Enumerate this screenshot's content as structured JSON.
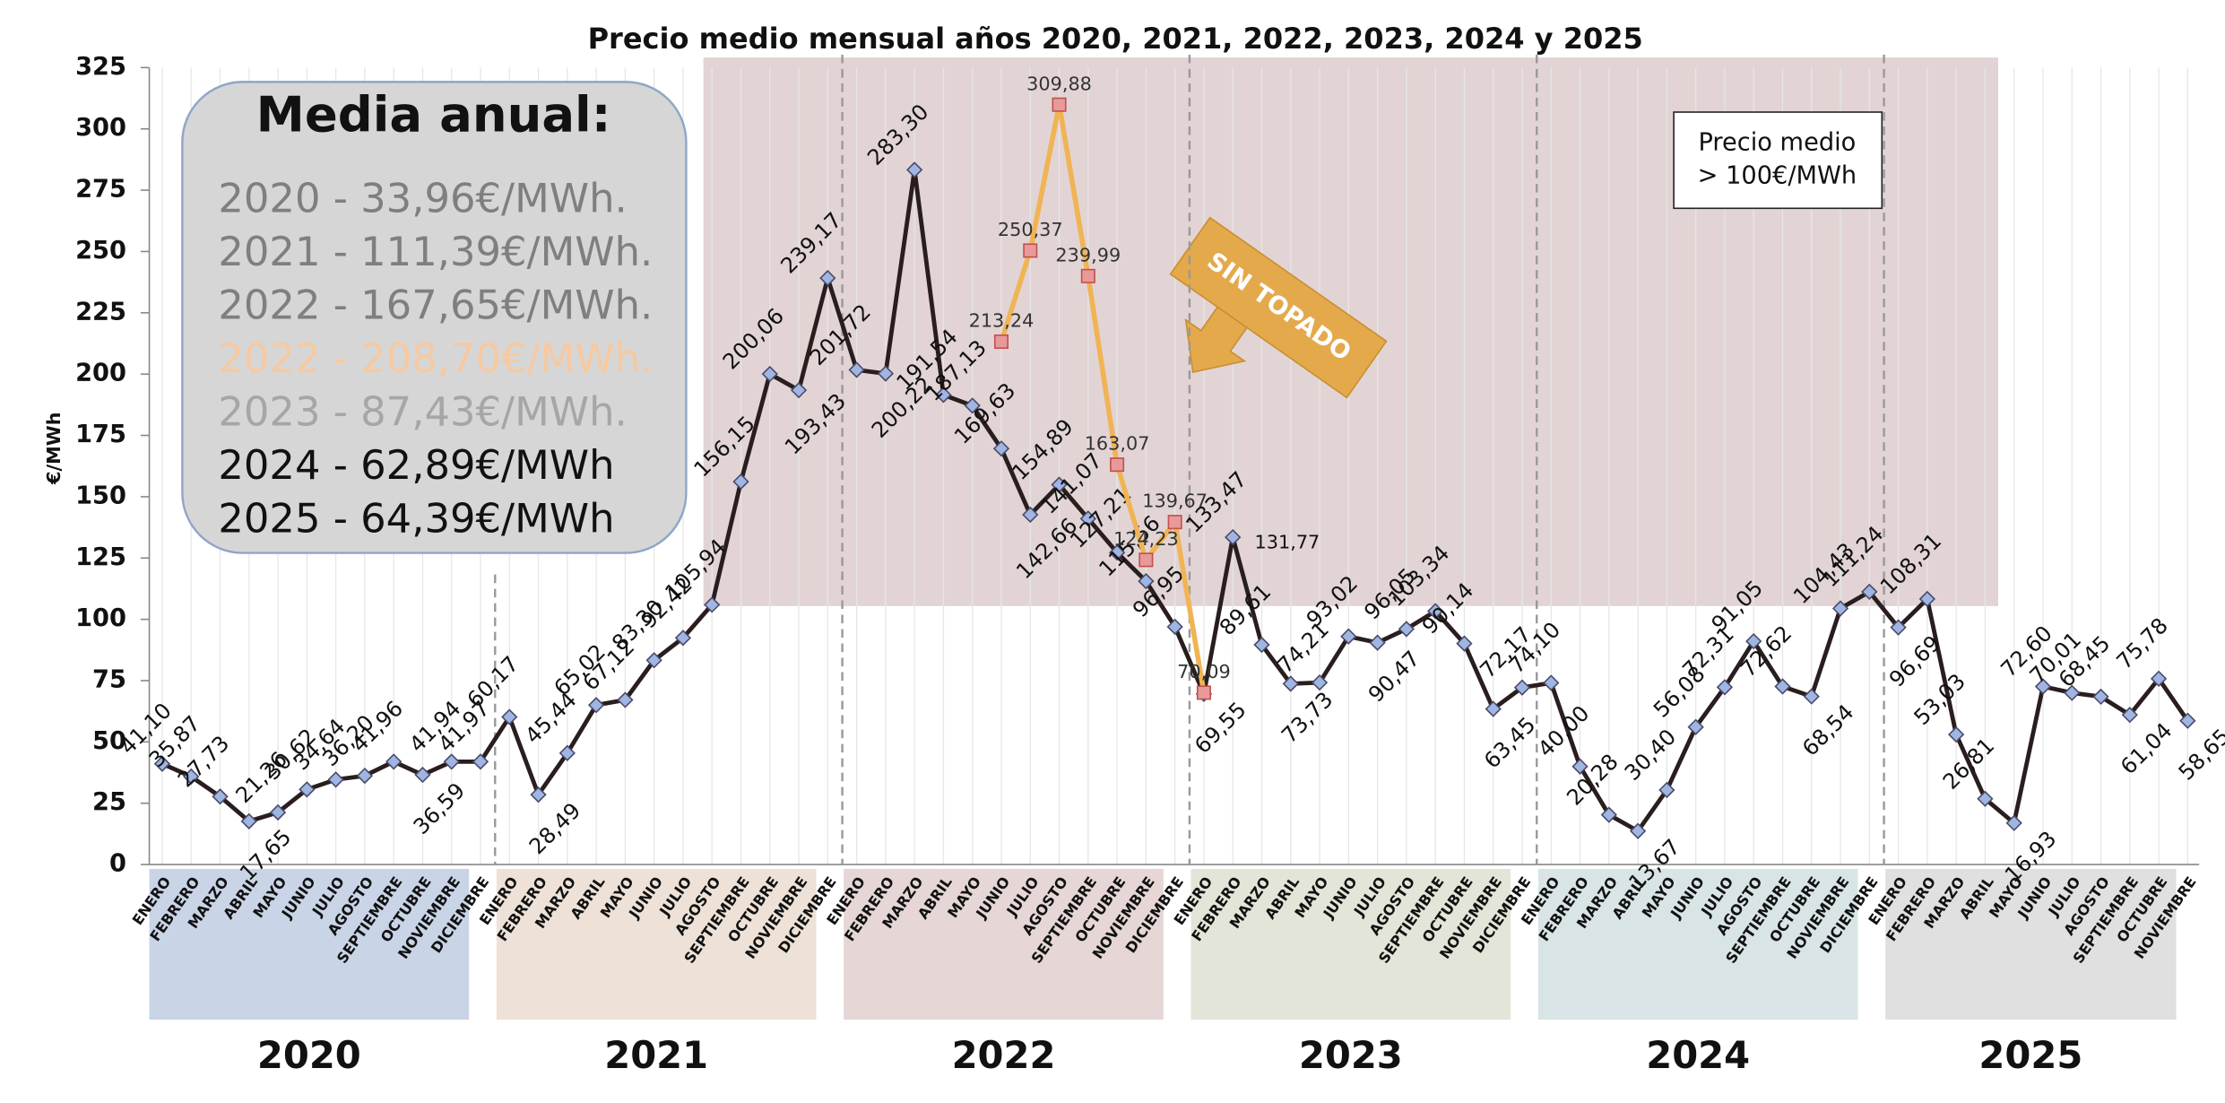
{
  "chart_data": {
    "type": "line",
    "title": "Precio medio mensual años 2020, 2021, 2022, 2023, 2024 y 2025",
    "y_label": "€/MWh",
    "ylim": [
      0,
      325
    ],
    "yticks": [
      0,
      25,
      50,
      75,
      100,
      125,
      150,
      175,
      200,
      225,
      250,
      275,
      300,
      325
    ],
    "grid": true,
    "categories": [
      "ENERO",
      "FEBRERO",
      "MARZO",
      "ABRIL",
      "MAYO",
      "JUNIO",
      "JULIO",
      "AGOSTO",
      "SEPTIEMBRE",
      "OCTUBRE",
      "NOVIEMBRE",
      "DICIEMBRE",
      "ENERO",
      "FEBRERO",
      "MARZO",
      "ABRIL",
      "MAYO",
      "JUNIO",
      "JULIO",
      "AGOSTO",
      "SEPTIEMBRE",
      "OCTUBRE",
      "NOVIEMBRE",
      "DICIEMBRE",
      "ENERO",
      "FEBRERO",
      "MARZO",
      "ABRIL",
      "MAYO",
      "JUNIO",
      "JULIO",
      "AGOSTO",
      "SEPTIEMBRE",
      "OCTUBRE",
      "NOVIEMBRE",
      "DICIEMBRE",
      "ENERO",
      "FEBRERO",
      "MARZO",
      "ABRIL",
      "MAYO",
      "JUNIO",
      "JULIO",
      "AGOSTO",
      "SEPTIEMBRE",
      "OCTUBRE",
      "NOVIEMBRE",
      "DICIEMBRE",
      "ENERO",
      "FEBRERO",
      "MARZO",
      "ABRIL",
      "MAYO",
      "JUNIO",
      "JULIO",
      "AGOSTO",
      "SEPTIEMBRE",
      "OCTUBRE",
      "NOVIEMBRE",
      "DICIEMBRE",
      "ENERO",
      "FEBRERO",
      "MARZO",
      "ABRIL",
      "MAYO",
      "JUNIO",
      "JULIO",
      "AGOSTO",
      "SEPTIEMBRE",
      "OCTUBRE",
      "NOVIEMBRE"
    ],
    "years": [
      {
        "label": "2020",
        "color": "#c9d4e7"
      },
      {
        "label": "2021",
        "color": "#eee2d8"
      },
      {
        "label": "2022",
        "color": "#e6d6d6"
      },
      {
        "label": "2023",
        "color": "#e3e5d8"
      },
      {
        "label": "2024",
        "color": "#d8e4e6"
      },
      {
        "label": "2025",
        "color": "#e0e0e0"
      }
    ],
    "series": [
      {
        "color": "#2a1d1d",
        "marker_color": "#9fb5e2",
        "values": [
          41.1,
          35.87,
          27.73,
          17.65,
          21.26,
          30.62,
          34.64,
          36.2,
          41.96,
          36.59,
          41.94,
          41.97,
          60.17,
          28.49,
          45.44,
          65.02,
          67.12,
          83.3,
          92.42,
          105.94,
          156.15,
          200.06,
          193.43,
          239.17,
          201.72,
          200.22,
          283.3,
          191.54,
          187.13,
          169.63,
          142.66,
          154.89,
          141.07,
          127.21,
          115.56,
          96.95,
          69.55,
          133.47,
          89.61,
          73.73,
          74.21,
          93.02,
          90.47,
          96.05,
          103.34,
          90.14,
          63.45,
          72.17,
          74.1,
          40,
          20.28,
          13.67,
          30.4,
          56.08,
          72.31,
          91.05,
          72.62,
          68.54,
          104.43,
          111.24,
          96.69,
          108.31,
          53.03,
          26.81,
          16.93,
          72.6,
          70.01,
          68.45,
          61.04,
          75.78,
          58.65
        ],
        "value_labels": [
          "41,10",
          "35,87",
          "27,73",
          "17,65",
          "21,26",
          "30,62",
          "34,64",
          "36,20",
          "41,96",
          "36,59",
          "41,94",
          "41,97",
          "60,17",
          "28,49",
          "45,44",
          "65,02",
          "67,12",
          "83,30",
          "92,42",
          "105,94",
          "156,15",
          "200,06",
          "193,43",
          "239,17",
          "201,72",
          "200,22",
          "283,30",
          "191,54",
          "187,13",
          "169,63",
          "142,66",
          "154,89",
          "141,07",
          "127,21",
          "115,56",
          "96,95",
          "69,55",
          "133,47",
          "89,61",
          "73,73",
          "74,21",
          "93,02",
          "90,47",
          "96,05",
          "103,34",
          "90,14",
          "63,45",
          "72,17",
          "74,10",
          "40,00",
          "20,28",
          "13,67",
          "30,40",
          "56,08",
          "72,31",
          "91,05",
          "72,62",
          "68,54",
          "104,43",
          "111,24",
          "96,69",
          "108,31",
          "53,03",
          "26,81",
          "16,93",
          "72,60",
          "70,01",
          "68,45",
          "61,04",
          "75,78",
          "58,65"
        ]
      },
      {
        "color": "#f0b455",
        "marker_color": "#e89a9a",
        "values": [
          null,
          null,
          null,
          null,
          null,
          null,
          null,
          null,
          null,
          null,
          null,
          null,
          null,
          null,
          null,
          null,
          null,
          null,
          null,
          null,
          null,
          null,
          null,
          null,
          null,
          null,
          null,
          null,
          null,
          213.24,
          250.37,
          309.88,
          239.99,
          163.07,
          124.23,
          139.67,
          70.09,
          null,
          null,
          null,
          null,
          null,
          null,
          null,
          null,
          null,
          null,
          null,
          null,
          null,
          null,
          null,
          null,
          null,
          null,
          null,
          null,
          null,
          null,
          null,
          null,
          null,
          null,
          null,
          null,
          null,
          null,
          null,
          null,
          null,
          null
        ],
        "value_labels": [
          null,
          null,
          null,
          null,
          null,
          null,
          null,
          null,
          null,
          null,
          null,
          null,
          null,
          null,
          null,
          null,
          null,
          null,
          null,
          null,
          null,
          null,
          null,
          null,
          null,
          null,
          null,
          null,
          null,
          "213,24",
          "250,37",
          "309,88",
          "239,99",
          "163,07",
          "124,23",
          "139,67",
          "70,09",
          null,
          null,
          null,
          null,
          null,
          null,
          null,
          null,
          null,
          null,
          null,
          null,
          null,
          null,
          null,
          null,
          null,
          null,
          null,
          null,
          null,
          null,
          null,
          null,
          null,
          null,
          null,
          null,
          null,
          null,
          null,
          null,
          null,
          null
        ]
      }
    ],
    "media_anual": {
      "title": "Media anual:",
      "lines": [
        {
          "text": "2020 -   33,96€/MWh.",
          "color": "#7f7f7f"
        },
        {
          "text": "2021 - 111,39€/MWh.",
          "color": "#7f7f7f"
        },
        {
          "text": "2022 - 167,65€/MWh.",
          "color": "#7f7f7f"
        },
        {
          "text": "2022 - 208,70€/MWh.",
          "color": "#f7c9a0"
        },
        {
          "text": "2023  -  87,43€/MWh.",
          "color": "#a6a6a6"
        },
        {
          "text": "2024 -   62,89€/MWh",
          "color": "#111111"
        },
        {
          "text": "2025 -  64,39€/MWh",
          "color": "#111111"
        }
      ]
    },
    "note": [
      "Precio medio",
      "> 100€/MWh"
    ],
    "sin_topado": "SIN TOPADO",
    "extra_label": "131,77"
  }
}
